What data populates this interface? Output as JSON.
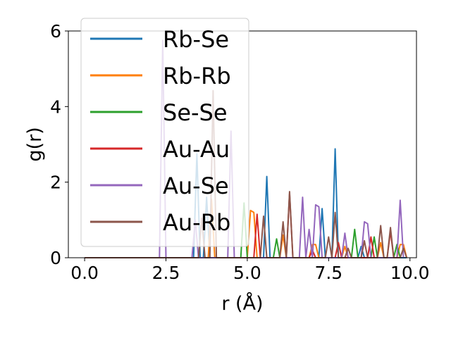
{
  "chart_data": {
    "type": "line",
    "title": "",
    "xlabel": "r (Å)",
    "ylabel": "g(r)",
    "xlim": [
      -0.5,
      10.2
    ],
    "ylim": [
      0,
      6
    ],
    "xticks": [
      "0.0",
      "2.5",
      "5.0",
      "7.5",
      "10.0"
    ],
    "xtick_values": [
      0,
      2.5,
      5,
      7.5,
      10
    ],
    "yticks": [
      "0",
      "2",
      "4",
      "6"
    ],
    "ytick_values": [
      0,
      2,
      4,
      6
    ],
    "grid": false,
    "legend_position": "upper-left",
    "series": [
      {
        "name": "Rb-Se",
        "color": "#1f77b4",
        "points": [
          [
            0,
            0
          ],
          [
            3.35,
            0
          ],
          [
            3.45,
            2.75
          ],
          [
            3.55,
            0
          ],
          [
            3.65,
            0
          ],
          [
            3.75,
            1.6
          ],
          [
            3.85,
            0
          ],
          [
            5.5,
            0
          ],
          [
            5.6,
            2.15
          ],
          [
            5.7,
            0
          ],
          [
            7.2,
            0
          ],
          [
            7.3,
            1.3
          ],
          [
            7.4,
            0
          ],
          [
            7.6,
            0
          ],
          [
            7.7,
            2.88
          ],
          [
            7.8,
            0
          ],
          [
            8.4,
            0
          ],
          [
            8.5,
            0.3
          ],
          [
            8.6,
            0
          ],
          [
            9.9,
            0
          ]
        ]
      },
      {
        "name": "Rb-Rb",
        "color": "#ff7f0e",
        "points": [
          [
            0,
            0
          ],
          [
            3.8,
            0
          ],
          [
            3.9,
            1.55
          ],
          [
            4.0,
            0
          ],
          [
            5.0,
            0
          ],
          [
            5.1,
            1.25
          ],
          [
            5.2,
            1.2
          ],
          [
            5.3,
            0
          ],
          [
            6.0,
            0
          ],
          [
            6.1,
            0.6
          ],
          [
            6.2,
            0
          ],
          [
            6.9,
            0
          ],
          [
            7.0,
            0.35
          ],
          [
            7.1,
            0.35
          ],
          [
            7.2,
            0
          ],
          [
            7.9,
            0
          ],
          [
            8.0,
            0.3
          ],
          [
            8.1,
            0
          ],
          [
            9.0,
            0
          ],
          [
            9.1,
            0.4
          ],
          [
            9.2,
            0
          ],
          [
            9.6,
            0
          ],
          [
            9.7,
            0.35
          ],
          [
            9.8,
            0.35
          ],
          [
            9.9,
            0
          ]
        ]
      },
      {
        "name": "Se-Se",
        "color": "#2ca02c",
        "points": [
          [
            0,
            0
          ],
          [
            4.8,
            0
          ],
          [
            4.9,
            1.45
          ],
          [
            5.0,
            0
          ],
          [
            5.8,
            0
          ],
          [
            5.9,
            0.5
          ],
          [
            6.0,
            0
          ],
          [
            8.2,
            0
          ],
          [
            8.3,
            0.75
          ],
          [
            8.4,
            0
          ],
          [
            8.8,
            0
          ],
          [
            8.9,
            0.55
          ],
          [
            9.0,
            0
          ],
          [
            9.5,
            0
          ],
          [
            9.6,
            0.35
          ],
          [
            9.7,
            0
          ]
        ]
      },
      {
        "name": "Au-Au",
        "color": "#d62728",
        "points": [
          [
            0,
            0
          ],
          [
            5.2,
            0
          ],
          [
            5.3,
            1.15
          ],
          [
            5.4,
            0
          ],
          [
            6.2,
            0
          ],
          [
            6.3,
            1.7
          ],
          [
            6.4,
            0
          ],
          [
            6.9,
            0
          ],
          [
            7.0,
            0.2
          ],
          [
            7.1,
            0
          ],
          [
            7.7,
            0
          ],
          [
            7.8,
            0.4
          ],
          [
            7.9,
            0
          ],
          [
            8.7,
            0
          ],
          [
            8.8,
            0.55
          ],
          [
            8.9,
            0
          ],
          [
            9.3,
            0
          ],
          [
            9.4,
            0.7
          ],
          [
            9.5,
            0
          ]
        ]
      },
      {
        "name": "Au-Se",
        "color": "#9467bd",
        "points": [
          [
            0,
            0
          ],
          [
            2.3,
            0
          ],
          [
            2.4,
            5.75
          ],
          [
            2.5,
            0
          ],
          [
            3.3,
            0
          ],
          [
            3.4,
            1.0
          ],
          [
            3.5,
            0
          ],
          [
            4.4,
            0
          ],
          [
            4.5,
            3.35
          ],
          [
            4.6,
            0
          ],
          [
            6.6,
            0
          ],
          [
            6.7,
            1.6
          ],
          [
            6.8,
            0
          ],
          [
            6.9,
            0.75
          ],
          [
            7.0,
            0
          ],
          [
            7.1,
            1.4
          ],
          [
            7.2,
            1.35
          ],
          [
            7.3,
            0
          ],
          [
            7.9,
            0
          ],
          [
            8.0,
            0.65
          ],
          [
            8.1,
            0
          ],
          [
            8.5,
            0
          ],
          [
            8.6,
            0.95
          ],
          [
            8.7,
            0.9
          ],
          [
            8.8,
            0
          ],
          [
            9.6,
            0
          ],
          [
            9.7,
            1.52
          ],
          [
            9.8,
            0
          ]
        ]
      },
      {
        "name": "Au-Rb",
        "color": "#8c564b",
        "points": [
          [
            0,
            0
          ],
          [
            3.5,
            0
          ],
          [
            3.6,
            1.05
          ],
          [
            3.7,
            0
          ],
          [
            3.85,
            0
          ],
          [
            3.95,
            4.42
          ],
          [
            4.05,
            0
          ],
          [
            5.4,
            0
          ],
          [
            5.5,
            1.1
          ],
          [
            5.6,
            0
          ],
          [
            6.0,
            0
          ],
          [
            6.1,
            0.95
          ],
          [
            6.2,
            0
          ],
          [
            6.3,
            1.75
          ],
          [
            6.4,
            0
          ],
          [
            7.4,
            0
          ],
          [
            7.5,
            0.55
          ],
          [
            7.6,
            0
          ],
          [
            7.7,
            1.2
          ],
          [
            7.8,
            0
          ],
          [
            8.0,
            0
          ],
          [
            8.1,
            0.25
          ],
          [
            8.2,
            0
          ],
          [
            8.5,
            0
          ],
          [
            8.6,
            0.45
          ],
          [
            8.7,
            0
          ],
          [
            9.0,
            0
          ],
          [
            9.1,
            0.85
          ],
          [
            9.2,
            0
          ],
          [
            9.3,
            0
          ],
          [
            9.4,
            0.8
          ],
          [
            9.5,
            0
          ],
          [
            9.7,
            0
          ],
          [
            9.8,
            0.25
          ],
          [
            9.9,
            0
          ]
        ]
      }
    ]
  }
}
